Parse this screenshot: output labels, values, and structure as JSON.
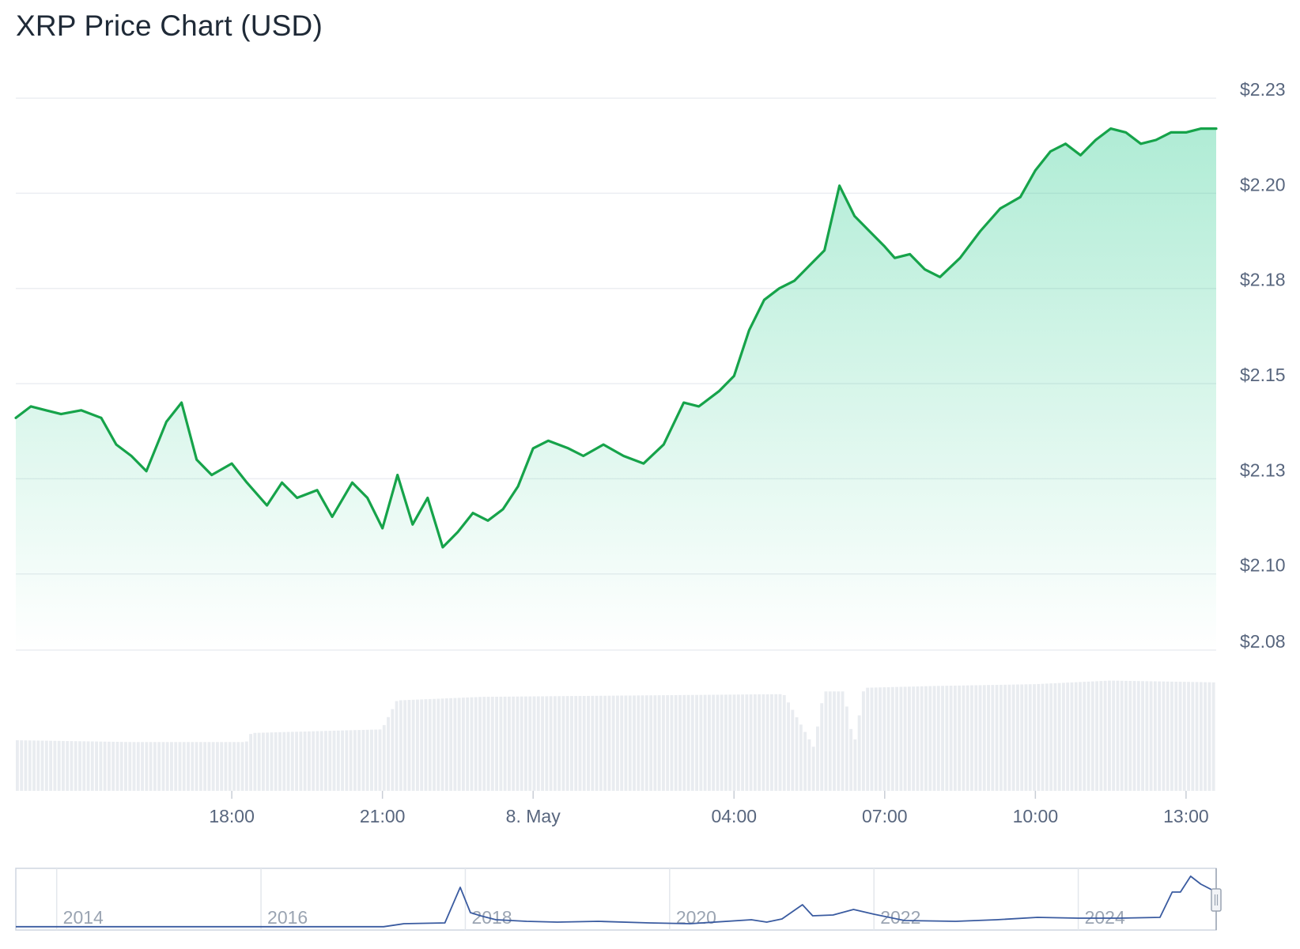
{
  "title": "XRP Price Chart (USD)",
  "colors": {
    "price_line": "#16a34a",
    "area_top": "#16c784",
    "volume_bar": "#e9ecf0",
    "gridline": "#eceef2",
    "navigator_line": "#3a5ba0",
    "axis_text": "#58667e"
  },
  "chart_data": [
    {
      "type": "area",
      "title": "XRP Price Chart (USD)",
      "y_tick_labels": [
        "$2.08",
        "$2.10",
        "$2.13",
        "$2.15",
        "$2.18",
        "$2.20",
        "$2.23"
      ],
      "y_tick_values": [
        2.08,
        2.1,
        2.125,
        2.15,
        2.175,
        2.2,
        2.225
      ],
      "ylim": [
        2.08,
        2.23
      ],
      "x_tick_labels": [
        "18:00",
        "21:00",
        "8. May",
        "04:00",
        "07:00",
        "10:00",
        "13:00"
      ],
      "x_tick_hours": [
        18,
        21,
        24,
        28,
        31,
        34,
        37
      ],
      "xlim_hours": [
        13.7,
        37.6
      ],
      "grid": true,
      "series": [
        {
          "x": [
            13.7,
            14.0,
            14.3,
            14.6,
            15.0,
            15.4,
            15.7,
            16.0,
            16.3,
            16.7,
            17.0,
            17.3,
            17.6,
            18.0,
            18.3,
            18.7,
            19.0,
            19.3,
            19.7,
            20.0,
            20.4,
            20.7,
            21.0,
            21.3,
            21.6,
            21.9,
            22.2,
            22.5,
            22.8,
            23.1,
            23.4,
            23.7,
            24.0,
            24.3,
            24.7,
            25.0,
            25.4,
            25.8,
            26.2,
            26.6,
            27.0,
            27.3,
            27.7,
            28.0,
            28.3,
            28.6,
            28.9,
            29.2,
            29.5,
            29.8,
            30.1,
            30.4,
            30.7,
            31.0,
            31.2,
            31.5,
            31.8,
            32.1,
            32.5,
            32.9,
            33.3,
            33.7,
            34.0,
            34.3,
            34.6,
            34.9,
            35.2,
            35.5,
            35.8,
            36.1,
            36.4,
            36.7,
            37.0,
            37.3,
            37.6
          ],
          "y": [
            2.141,
            2.144,
            2.143,
            2.142,
            2.143,
            2.141,
            2.134,
            2.131,
            2.127,
            2.14,
            2.145,
            2.13,
            2.126,
            2.129,
            2.124,
            2.118,
            2.124,
            2.12,
            2.122,
            2.115,
            2.124,
            2.12,
            2.112,
            2.126,
            2.113,
            2.12,
            2.107,
            2.111,
            2.116,
            2.114,
            2.117,
            2.123,
            2.133,
            2.135,
            2.133,
            2.131,
            2.134,
            2.131,
            2.129,
            2.134,
            2.145,
            2.144,
            2.148,
            2.152,
            2.164,
            2.172,
            2.175,
            2.177,
            2.181,
            2.185,
            2.202,
            2.194,
            2.19,
            2.186,
            2.183,
            2.184,
            2.18,
            2.178,
            2.183,
            2.19,
            2.196,
            2.199,
            2.206,
            2.211,
            2.213,
            2.21,
            2.214,
            2.217,
            2.216,
            2.213,
            2.214,
            2.216,
            2.216,
            2.217,
            2.217
          ]
        }
      ],
      "volume": {
        "x": [
          13.7,
          16.0,
          18.3,
          18.4,
          21.0,
          21.3,
          23.0,
          25.0,
          27.0,
          29.0,
          29.6,
          29.8,
          30.2,
          30.4,
          30.6,
          32.0,
          34.0,
          35.5,
          37.6
        ],
        "values": [
          28,
          27,
          27,
          32,
          34,
          50,
          52,
          52.5,
          53,
          53.5,
          24,
          55,
          55,
          25,
          57,
          58,
          59,
          61,
          60
        ]
      }
    },
    {
      "type": "line",
      "x_tick_labels": [
        "2014",
        "2016",
        "2018",
        "2020",
        "2022",
        "2024"
      ],
      "x_tick_years": [
        2014,
        2016,
        2018,
        2020,
        2022,
        2024
      ],
      "xlim": [
        2013.6,
        2025.35
      ],
      "series": [
        {
          "x": [
            2013.6,
            2017.2,
            2017.4,
            2017.8,
            2017.95,
            2018.05,
            2018.15,
            2018.3,
            2018.6,
            2018.9,
            2019.3,
            2019.8,
            2020.2,
            2020.8,
            2020.95,
            2021.1,
            2021.3,
            2021.4,
            2021.6,
            2021.8,
            2022.0,
            2022.3,
            2022.8,
            2023.2,
            2023.6,
            2024.0,
            2024.4,
            2024.8,
            2024.92,
            2025.0,
            2025.1,
            2025.2,
            2025.35
          ],
          "y": [
            0.01,
            0.01,
            0.2,
            0.25,
            2.5,
            0.9,
            0.7,
            0.45,
            0.35,
            0.3,
            0.35,
            0.25,
            0.2,
            0.45,
            0.3,
            0.5,
            1.4,
            0.7,
            0.75,
            1.1,
            0.8,
            0.4,
            0.35,
            0.45,
            0.6,
            0.55,
            0.55,
            0.6,
            2.2,
            2.2,
            3.2,
            2.7,
            2.2
          ]
        }
      ]
    }
  ]
}
